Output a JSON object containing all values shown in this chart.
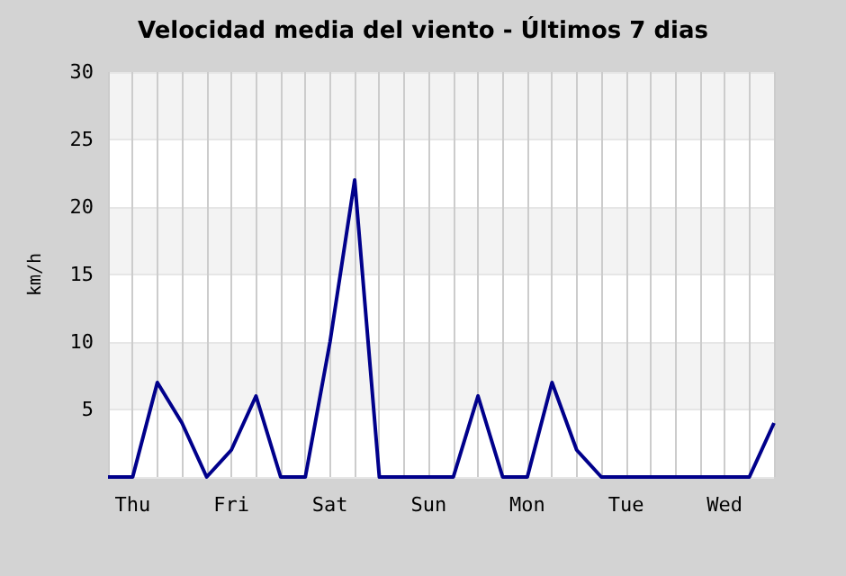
{
  "chart_data": {
    "type": "line",
    "title": "Velocidad media del viento - Últimos 7 dias",
    "ylabel": "km/h",
    "categories": [
      null,
      "Thu",
      null,
      null,
      null,
      "Fri",
      null,
      null,
      null,
      "Sat",
      null,
      null,
      null,
      "Sun",
      null,
      null,
      null,
      "Mon",
      null,
      null,
      null,
      "Tue",
      null,
      null,
      null,
      "Wed",
      null,
      null
    ],
    "series": [
      {
        "color": "#00008b",
        "values": [
          0,
          0,
          7,
          4,
          0,
          2,
          6,
          0,
          0,
          10,
          22,
          0,
          0,
          0,
          0,
          6,
          0,
          0,
          7,
          2,
          0,
          0,
          0,
          0,
          0,
          0,
          0,
          4
        ]
      }
    ],
    "ylim": [
      0,
      30
    ],
    "yticks": [
      {
        "value": 0,
        "label": null
      },
      5,
      10,
      15,
      20,
      25,
      30
    ],
    "grid": true,
    "marker": "none",
    "line_style": "solid"
  }
}
